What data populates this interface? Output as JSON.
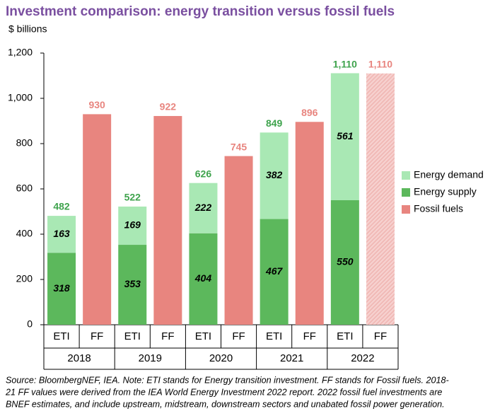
{
  "chart_data": {
    "type": "stacked_bar",
    "title": "Investment comparison: energy transition versus fossil fuels",
    "y_label": "$ billions",
    "categories": [
      "ETI",
      "FF",
      "ETI",
      "FF",
      "ETI",
      "FF",
      "ETI",
      "FF",
      "ETI",
      "FF"
    ],
    "groups": [
      "2018",
      "2019",
      "2020",
      "2021",
      "2022"
    ],
    "ylim": [
      0,
      1200
    ],
    "yticks": [
      0,
      200,
      400,
      600,
      800,
      {
        "value": 1000,
        "label": "1,000"
      },
      {
        "value": 1200,
        "label": "1,200"
      }
    ],
    "series": [
      {
        "name": "Energy demand",
        "color": "#a9e8b4",
        "values": [
          163,
          null,
          169,
          null,
          222,
          null,
          382,
          null,
          561,
          null
        ]
      },
      {
        "name": "Energy supply",
        "color": "#5cb85c",
        "values": [
          318,
          null,
          353,
          null,
          404,
          null,
          467,
          null,
          550,
          null
        ]
      },
      {
        "name": "Fossil fuels",
        "color": "#e8857f",
        "values": [
          null,
          930,
          null,
          922,
          null,
          745,
          null,
          896,
          null,
          1110
        ],
        "value_labels": [
          null,
          "930",
          null,
          "922",
          null,
          "745",
          null,
          "896",
          null,
          "1,110"
        ],
        "hatched": [
          false,
          false,
          false,
          false,
          false,
          false,
          false,
          false,
          false,
          true
        ]
      }
    ],
    "totals": {
      "color": "#3fa34d",
      "values": [
        482,
        null,
        522,
        null,
        626,
        null,
        849,
        null,
        1110,
        null
      ],
      "value_labels": [
        "482",
        null,
        "522",
        null,
        "626",
        null,
        "849",
        null,
        "1,110",
        null
      ]
    },
    "legend": "right",
    "source_lines": [
      "Source: BloombergNEF, IEA. Note: ETI stands for Energy transition investment. FF stands for Fossil fuels. 2018-",
      "21 FF values were derived from the IEA World Energy Investment 2022 report. 2022 fossil fuel investments are",
      "BNEF estimates, and include upstream, midstream, downstream sectors and unabated fossil power generation."
    ]
  }
}
